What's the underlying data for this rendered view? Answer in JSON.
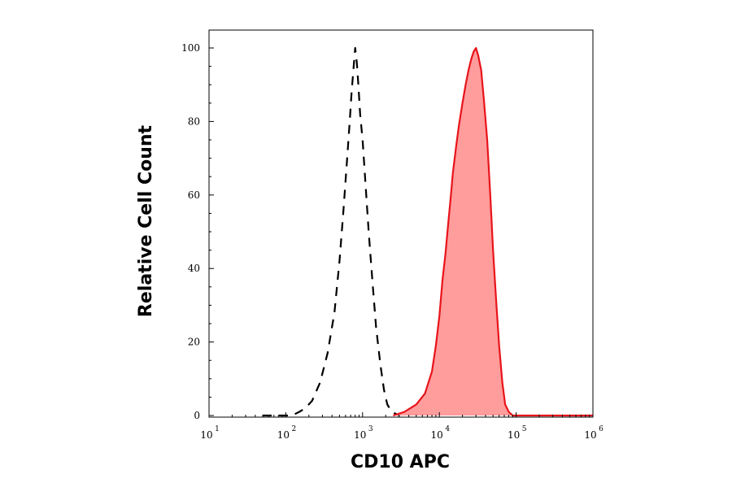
{
  "chart_data": {
    "type": "area",
    "title": "",
    "xlabel": "CD10 APC",
    "ylabel": "Relative Cell Count",
    "x_scale": "log",
    "xlim": [
      10,
      1000000
    ],
    "ylim": [
      0,
      100
    ],
    "x_ticks": [
      {
        "base": "10",
        "exp": "1",
        "value": 10
      },
      {
        "base": "10",
        "exp": "2",
        "value": 100
      },
      {
        "base": "10",
        "exp": "3",
        "value": 1000
      },
      {
        "base": "10",
        "exp": "4",
        "value": 10000
      },
      {
        "base": "10",
        "exp": "5",
        "value": 100000
      },
      {
        "base": "10",
        "exp": "6",
        "value": 1000000
      }
    ],
    "y_ticks": [
      {
        "label": "0",
        "value": 0
      },
      {
        "label": "20",
        "value": 20
      },
      {
        "label": "40",
        "value": 40
      },
      {
        "label": "60",
        "value": 60
      },
      {
        "label": "80",
        "value": 80
      },
      {
        "label": "100",
        "value": 100
      }
    ],
    "grid": false,
    "series": [
      {
        "style": "dashed-black-outline",
        "color": "#000000",
        "x": [
          50,
          120,
          150,
          180,
          220,
          280,
          350,
          430,
          500,
          560,
          620,
          680,
          720,
          760,
          800,
          840,
          880,
          930,
          1000,
          1100,
          1200,
          1350,
          1500,
          1700,
          1900,
          2100,
          2400,
          3000
        ],
        "y": [
          0,
          0,
          1,
          2,
          4,
          9,
          17,
          28,
          42,
          55,
          68,
          80,
          88,
          94,
          100,
          96,
          90,
          82,
          75,
          62,
          50,
          36,
          24,
          14,
          7,
          3,
          1,
          0
        ]
      },
      {
        "style": "filled-red",
        "color": "#e8141b",
        "fill": "#ff9c9c",
        "x": [
          2500,
          3500,
          5000,
          6500,
          8000,
          9000,
          10000,
          11000,
          12000,
          13000,
          14000,
          15000,
          16500,
          18000,
          20000,
          22000,
          24000,
          26000,
          28000,
          30000,
          32000,
          35000,
          38000,
          42000,
          46000,
          50000,
          55000,
          60000,
          66000,
          72000,
          80000,
          90000,
          100000,
          200000,
          1000000
        ],
        "y": [
          0,
          1,
          3,
          6,
          12,
          19,
          27,
          37,
          44,
          52,
          59,
          66,
          73,
          79,
          85,
          90,
          94,
          97,
          99,
          100,
          98,
          94,
          86,
          75,
          60,
          45,
          31,
          19,
          9,
          3,
          1,
          0,
          0,
          0,
          0
        ]
      }
    ]
  }
}
